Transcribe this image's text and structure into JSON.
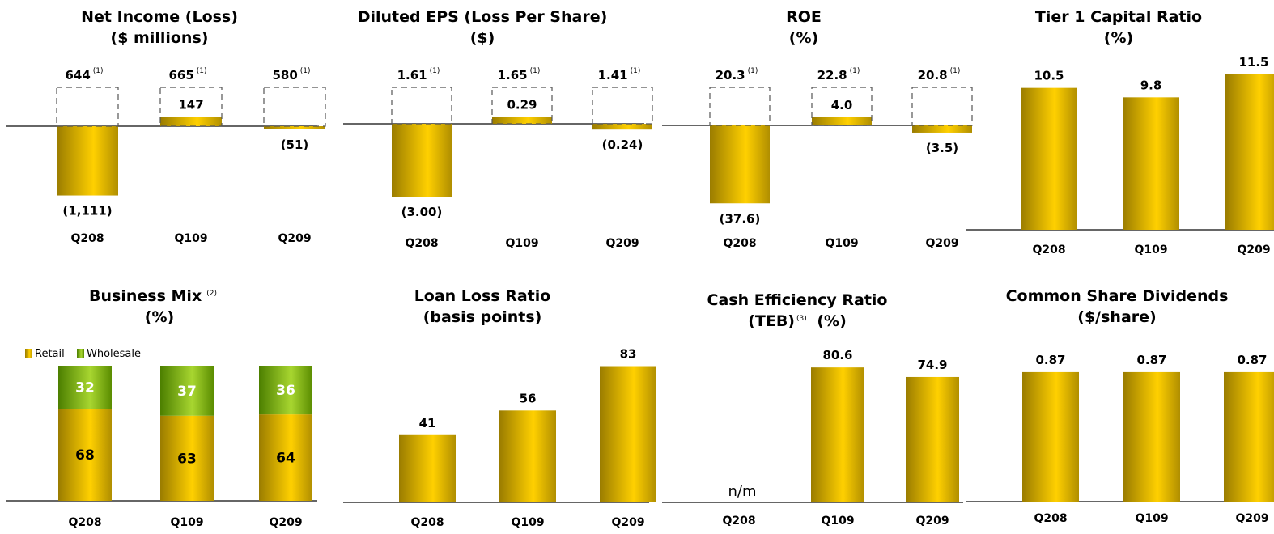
{
  "chart_data": [
    {
      "type": "bar",
      "title": [
        "Net Income (Loss)",
        "($ millions)"
      ],
      "categories": [
        "Q208",
        "Q109",
        "Q209"
      ],
      "values": [
        -1111,
        147,
        -51
      ],
      "value_labels": [
        "(1,111)",
        "147",
        "(51)"
      ],
      "adjusted_values": [
        644,
        665,
        580
      ],
      "adjusted_labels": [
        "644",
        "665",
        "580"
      ],
      "footnote_marker": "(1)",
      "ylim": [
        -1200,
        800
      ]
    },
    {
      "type": "bar",
      "title": [
        "Diluted EPS (Loss Per Share)",
        "($)"
      ],
      "categories": [
        "Q208",
        "Q109",
        "Q209"
      ],
      "values": [
        -3.0,
        0.29,
        -0.24
      ],
      "value_labels": [
        "(3.00)",
        "0.29",
        "(0.24)"
      ],
      "adjusted_values": [
        1.61,
        1.65,
        1.41
      ],
      "adjusted_labels": [
        "1.61",
        "1.65",
        "1.41"
      ],
      "footnote_marker": "(1)",
      "ylim": [
        -3.3,
        2.1
      ]
    },
    {
      "type": "bar",
      "title": [
        "ROE",
        "(%)"
      ],
      "categories": [
        "Q208",
        "Q109",
        "Q209"
      ],
      "values": [
        -37.6,
        4.0,
        -3.5
      ],
      "value_labels": [
        "(37.6)",
        "4.0",
        "(3.5)"
      ],
      "adjusted_values": [
        20.3,
        22.8,
        20.8
      ],
      "adjusted_labels": [
        "20.3",
        "22.8",
        "20.8"
      ],
      "footnote_marker": "(1)",
      "ylim": [
        -41,
        27
      ]
    },
    {
      "type": "bar",
      "title": [
        "Tier 1 Capital Ratio",
        "(%)"
      ],
      "categories": [
        "Q208",
        "Q109",
        "Q209"
      ],
      "values": [
        10.5,
        9.8,
        11.5
      ],
      "value_labels": [
        "10.5",
        "9.8",
        "11.5"
      ],
      "ylim": [
        0,
        13
      ]
    },
    {
      "type": "bar",
      "stacked": true,
      "title": [
        "Business Mix",
        "(%)"
      ],
      "title_sup": "(2)",
      "categories": [
        "Q208",
        "Q109",
        "Q209"
      ],
      "series": [
        {
          "name": "Retail",
          "values": [
            68,
            63,
            64
          ]
        },
        {
          "name": "Wholesale",
          "values": [
            32,
            37,
            36
          ]
        }
      ],
      "legend": "top-left",
      "ylim": [
        0,
        100
      ]
    },
    {
      "type": "bar",
      "title": [
        "Loan Loss Ratio",
        "(basis points)"
      ],
      "categories": [
        "Q208",
        "Q109",
        "Q209"
      ],
      "values": [
        41,
        56,
        83
      ],
      "value_labels": [
        "41",
        "56",
        "83"
      ],
      "ylim": [
        0,
        95
      ]
    },
    {
      "type": "bar",
      "title": [
        "Cash Efficiency Ratio",
        "(TEB)",
        "(%)"
      ],
      "title_sup": "(3)",
      "categories": [
        "Q208",
        "Q109",
        "Q209"
      ],
      "values": [
        null,
        80.6,
        74.9
      ],
      "value_labels": [
        "n/m",
        "80.6",
        "74.9"
      ],
      "ylim": [
        0,
        90
      ]
    },
    {
      "type": "bar",
      "title": [
        "Common Share Dividends",
        "($/share)"
      ],
      "categories": [
        "Q208",
        "Q109",
        "Q209"
      ],
      "values": [
        0.87,
        0.87,
        0.87
      ],
      "value_labels": [
        "0.87",
        "0.87",
        "0.87"
      ],
      "ylim": [
        0,
        1.05
      ]
    }
  ],
  "colors": {
    "gold_edge": "#9a7c00",
    "gold_mid": "#ffd000",
    "green_edge": "#4c7f00",
    "green_mid": "#a8d630",
    "axis": "#333333",
    "dashed": "#555555"
  }
}
